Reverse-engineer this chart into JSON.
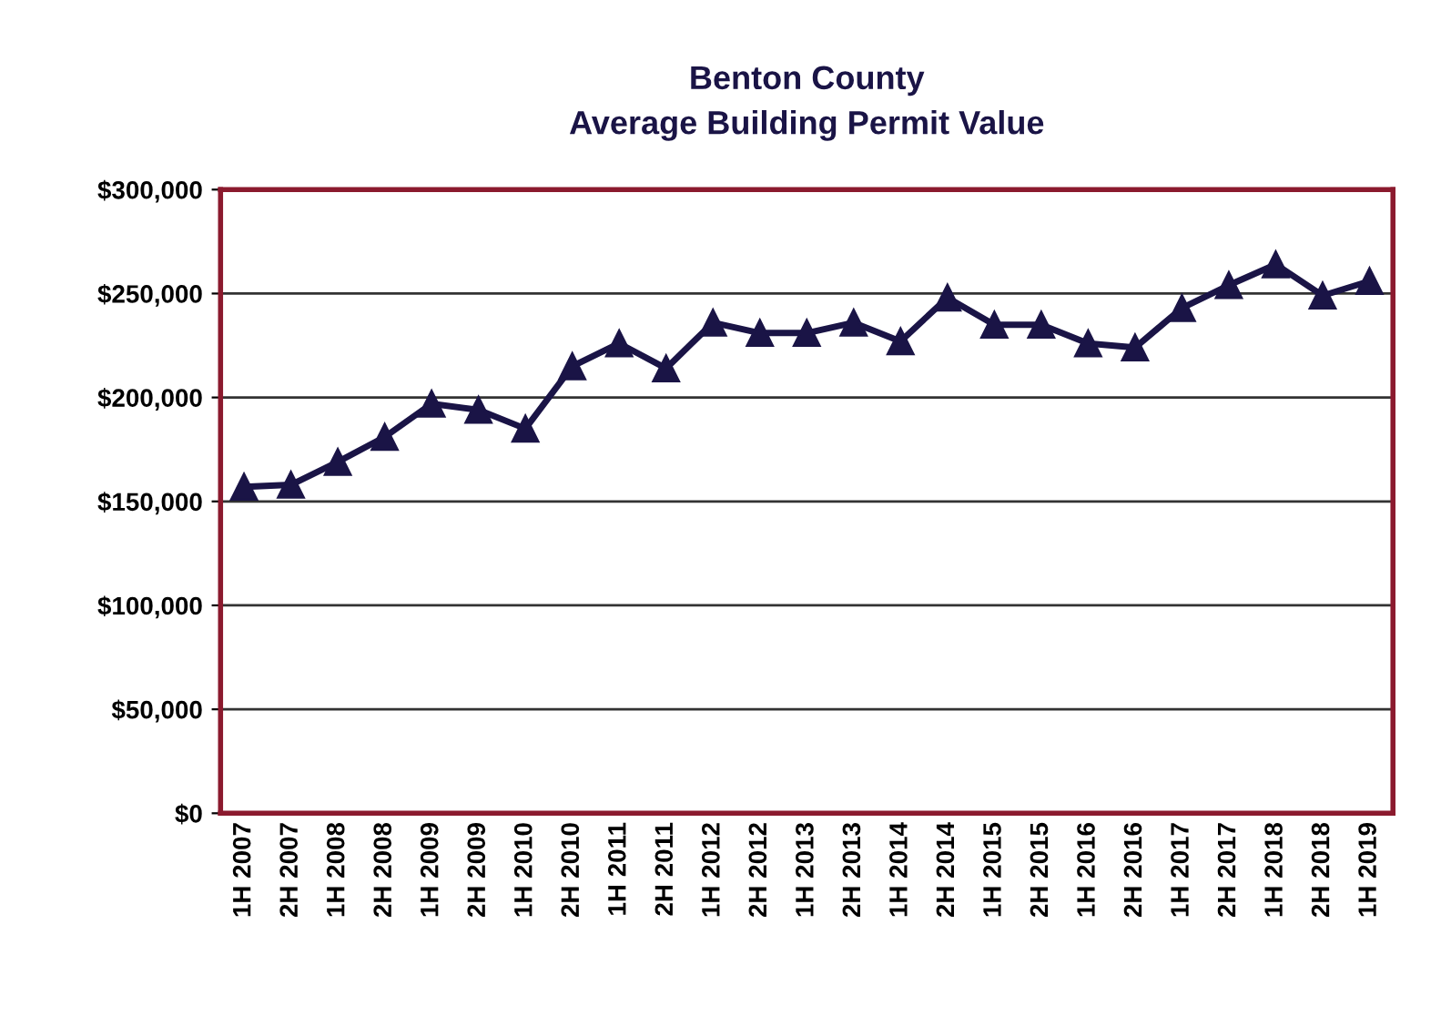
{
  "chart_data": {
    "type": "line",
    "title": "Benton County\nAverage Building Permit Value",
    "categories": [
      "1H 2007",
      "2H 2007",
      "1H 2008",
      "2H 2008",
      "1H 2009",
      "2H 2009",
      "1H 2010",
      "2H 2010",
      "1H 2011",
      "2H 2011",
      "1H 2012",
      "2H 2012",
      "1H 2013",
      "2H 2013",
      "1H 2014",
      "2H 2014",
      "1H 2015",
      "2H 2015",
      "1H 2016",
      "2H 2016",
      "1H 2017",
      "2H 2017",
      "1H 2018",
      "2H 2018",
      "1H 2019"
    ],
    "series": [
      {
        "color": "#1a1446",
        "values": [
          157000,
          158000,
          169000,
          181000,
          197000,
          194000,
          185000,
          215000,
          226000,
          214000,
          236000,
          231000,
          231000,
          236000,
          227000,
          248000,
          235000,
          235000,
          226000,
          224000,
          243000,
          254000,
          264000,
          249000,
          256000
        ]
      }
    ],
    "ylim": [
      0,
      300000
    ],
    "yticks": [
      {
        "value": 0,
        "label": "$0"
      },
      {
        "value": 50000,
        "label": "$50,000"
      },
      {
        "value": 100000,
        "label": "$100,000"
      },
      {
        "value": 150000,
        "label": "$150,000"
      },
      {
        "value": 200000,
        "label": "$200,000"
      },
      {
        "value": 250000,
        "label": "$250,000"
      },
      {
        "value": 300000,
        "label": "$300,000"
      }
    ],
    "grid": "y",
    "marker": "triangle",
    "line_style": "solid",
    "legend": false
  }
}
